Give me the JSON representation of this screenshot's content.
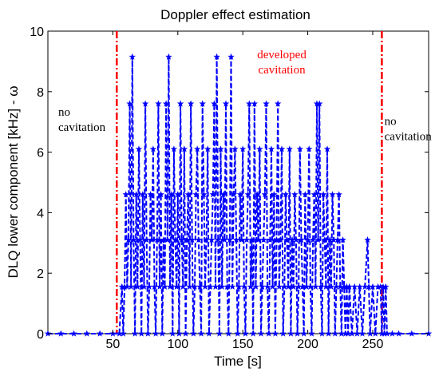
{
  "chart_data": {
    "type": "line",
    "title": "Doppler effect estimation",
    "xlabel": "Time [s]",
    "ylabel": "DLQ lower component [kHz] - ω",
    "xlim": [
      0,
      293
    ],
    "ylim": [
      0,
      10
    ],
    "x_ticks": [
      50,
      100,
      150,
      200,
      250
    ],
    "y_ticks": [
      0,
      2,
      4,
      6,
      8,
      10
    ],
    "grid": false,
    "series": [
      {
        "color": "#0000ff",
        "line_style": "dashed",
        "marker": "star",
        "points": [
          [
            0,
            0
          ],
          [
            10,
            0
          ],
          [
            20,
            0
          ],
          [
            30,
            0
          ],
          [
            40,
            0
          ],
          [
            50,
            0
          ],
          [
            55,
            0
          ],
          [
            57,
            1.55
          ],
          [
            58,
            0
          ],
          [
            59,
            1.55
          ],
          [
            60,
            4.6
          ],
          [
            61,
            1.55
          ],
          [
            62,
            3.1
          ],
          [
            63,
            7.6
          ],
          [
            64,
            1.55
          ],
          [
            65,
            9.15
          ],
          [
            66,
            3.1
          ],
          [
            67,
            0
          ],
          [
            68,
            4.6
          ],
          [
            69,
            1.55
          ],
          [
            70,
            6.1
          ],
          [
            71,
            3.1
          ],
          [
            72,
            0
          ],
          [
            73,
            4.6
          ],
          [
            74,
            1.55
          ],
          [
            75,
            7.6
          ],
          [
            76,
            3.1
          ],
          [
            77,
            0
          ],
          [
            78,
            1.55
          ],
          [
            79,
            4.6
          ],
          [
            80,
            3.1
          ],
          [
            81,
            6.1
          ],
          [
            82,
            1.55
          ],
          [
            83,
            0
          ],
          [
            84,
            3.1
          ],
          [
            85,
            7.6
          ],
          [
            86,
            1.55
          ],
          [
            87,
            4.6
          ],
          [
            88,
            0
          ],
          [
            89,
            3.1
          ],
          [
            90,
            1.55
          ],
          [
            91,
            7.6
          ],
          [
            92,
            3.1
          ],
          [
            93,
            9.15
          ],
          [
            94,
            1.55
          ],
          [
            95,
            4.6
          ],
          [
            96,
            0
          ],
          [
            97,
            6.1
          ],
          [
            98,
            3.1
          ],
          [
            99,
            1.55
          ],
          [
            100,
            4.6
          ],
          [
            101,
            0
          ],
          [
            102,
            7.6
          ],
          [
            103,
            3.1
          ],
          [
            104,
            1.55
          ],
          [
            105,
            6.1
          ],
          [
            106,
            0
          ],
          [
            107,
            3.1
          ],
          [
            108,
            4.6
          ],
          [
            109,
            1.55
          ],
          [
            110,
            7.6
          ],
          [
            111,
            3.1
          ],
          [
            112,
            0
          ],
          [
            113,
            1.55
          ],
          [
            114,
            4.6
          ],
          [
            115,
            6.1
          ],
          [
            116,
            3.1
          ],
          [
            117,
            1.55
          ],
          [
            118,
            0
          ],
          [
            119,
            7.6
          ],
          [
            120,
            4.6
          ],
          [
            121,
            1.55
          ],
          [
            122,
            3.1
          ],
          [
            123,
            6.1
          ],
          [
            124,
            0
          ],
          [
            125,
            1.55
          ],
          [
            126,
            3.1
          ],
          [
            127,
            4.6
          ],
          [
            128,
            7.6
          ],
          [
            129,
            1.55
          ],
          [
            130,
            9.15
          ],
          [
            131,
            3.1
          ],
          [
            132,
            0
          ],
          [
            133,
            6.1
          ],
          [
            134,
            1.55
          ],
          [
            135,
            4.6
          ],
          [
            136,
            3.1
          ],
          [
            137,
            7.6
          ],
          [
            138,
            1.55
          ],
          [
            139,
            0
          ],
          [
            140,
            3.1
          ],
          [
            141,
            9.15
          ],
          [
            142,
            1.55
          ],
          [
            143,
            4.6
          ],
          [
            144,
            6.1
          ],
          [
            145,
            3.1
          ],
          [
            146,
            0
          ],
          [
            147,
            1.55
          ],
          [
            148,
            4.6
          ],
          [
            149,
            3.1
          ],
          [
            150,
            6.1
          ],
          [
            151,
            1.55
          ],
          [
            152,
            0
          ],
          [
            153,
            3.1
          ],
          [
            154,
            4.6
          ],
          [
            155,
            7.6
          ],
          [
            156,
            1.55
          ],
          [
            157,
            3.1
          ],
          [
            158,
            0
          ],
          [
            159,
            7.6
          ],
          [
            160,
            1.55
          ],
          [
            161,
            4.6
          ],
          [
            162,
            3.1
          ],
          [
            163,
            6.1
          ],
          [
            164,
            0
          ],
          [
            165,
            1.55
          ],
          [
            166,
            3.1
          ],
          [
            167,
            4.6
          ],
          [
            168,
            7.6
          ],
          [
            169,
            1.55
          ],
          [
            170,
            0
          ],
          [
            171,
            3.1
          ],
          [
            172,
            6.1
          ],
          [
            173,
            1.55
          ],
          [
            174,
            4.6
          ],
          [
            175,
            0
          ],
          [
            176,
            3.1
          ],
          [
            177,
            7.6
          ],
          [
            178,
            1.55
          ],
          [
            179,
            3.1
          ],
          [
            180,
            6.1
          ],
          [
            181,
            0
          ],
          [
            182,
            1.55
          ],
          [
            183,
            4.6
          ],
          [
            184,
            3.1
          ],
          [
            185,
            1.55
          ],
          [
            186,
            6.1
          ],
          [
            187,
            0
          ],
          [
            188,
            3.1
          ],
          [
            189,
            1.55
          ],
          [
            190,
            4.6
          ],
          [
            191,
            3.1
          ],
          [
            192,
            0
          ],
          [
            193,
            1.55
          ],
          [
            194,
            6.1
          ],
          [
            195,
            3.1
          ],
          [
            196,
            1.55
          ],
          [
            197,
            0
          ],
          [
            198,
            4.6
          ],
          [
            199,
            1.55
          ],
          [
            200,
            3.1
          ],
          [
            201,
            6.1
          ],
          [
            202,
            1.55
          ],
          [
            203,
            0
          ],
          [
            204,
            3.1
          ],
          [
            205,
            4.6
          ],
          [
            206,
            1.55
          ],
          [
            207,
            7.6
          ],
          [
            208,
            3.1
          ],
          [
            209,
            7.6
          ],
          [
            210,
            1.55
          ],
          [
            211,
            0
          ],
          [
            212,
            4.6
          ],
          [
            213,
            3.1
          ],
          [
            214,
            1.55
          ],
          [
            215,
            6.1
          ],
          [
            216,
            0
          ],
          [
            217,
            3.1
          ],
          [
            218,
            1.55
          ],
          [
            219,
            4.6
          ],
          [
            220,
            3.1
          ],
          [
            221,
            0
          ],
          [
            222,
            1.55
          ],
          [
            223,
            3.1
          ],
          [
            224,
            4.6
          ],
          [
            225,
            1.55
          ],
          [
            226,
            0
          ],
          [
            227,
            3.1
          ],
          [
            228,
            1.55
          ],
          [
            229,
            0
          ],
          [
            230,
            1.55
          ],
          [
            231,
            0
          ],
          [
            232,
            1.55
          ],
          [
            234,
            0
          ],
          [
            236,
            1.55
          ],
          [
            238,
            0
          ],
          [
            240,
            1.55
          ],
          [
            242,
            0
          ],
          [
            244,
            1.55
          ],
          [
            246,
            3.1
          ],
          [
            247,
            1.55
          ],
          [
            248,
            0
          ],
          [
            250,
            1.55
          ],
          [
            252,
            0
          ],
          [
            254,
            1.55
          ],
          [
            256,
            1.55
          ],
          [
            257,
            0
          ],
          [
            258,
            1.55
          ],
          [
            259,
            0
          ],
          [
            260,
            1.55
          ],
          [
            261,
            0
          ],
          [
            265,
            0
          ],
          [
            270,
            0
          ],
          [
            280,
            0
          ],
          [
            293,
            0
          ]
        ]
      }
    ],
    "vlines": [
      {
        "x": 53,
        "color": "#ff0000",
        "style": "dash-dot"
      },
      {
        "x": 257,
        "color": "#ff0000",
        "style": "dash-dot"
      }
    ],
    "annotations": [
      {
        "lines": [
          "no",
          "cavitation"
        ],
        "color": "#000000",
        "x": 8,
        "y": 7.2
      },
      {
        "lines": [
          "developed",
          "cavitation"
        ],
        "color": "#ff0000",
        "x": 180,
        "y": 9.1
      },
      {
        "lines": [
          "no",
          "cavitation"
        ],
        "color": "#000000",
        "x": 259,
        "y": 6.9
      }
    ]
  }
}
